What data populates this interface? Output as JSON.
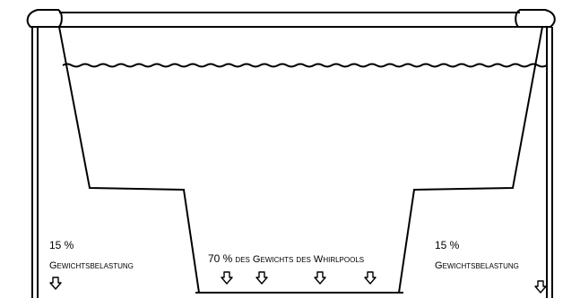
{
  "labels": {
    "left_percent": "15 %",
    "left_load": "Gewichtsbelastung",
    "center_percent": "70 %",
    "center_text": "des Gewichts des Whirlpools",
    "right_percent": "15 %",
    "right_load": "Gewichtsbelastung"
  },
  "icons": {
    "arrow": "down-arrow-icon"
  },
  "colors": {
    "line": "#000000",
    "background": "#ffffff"
  }
}
